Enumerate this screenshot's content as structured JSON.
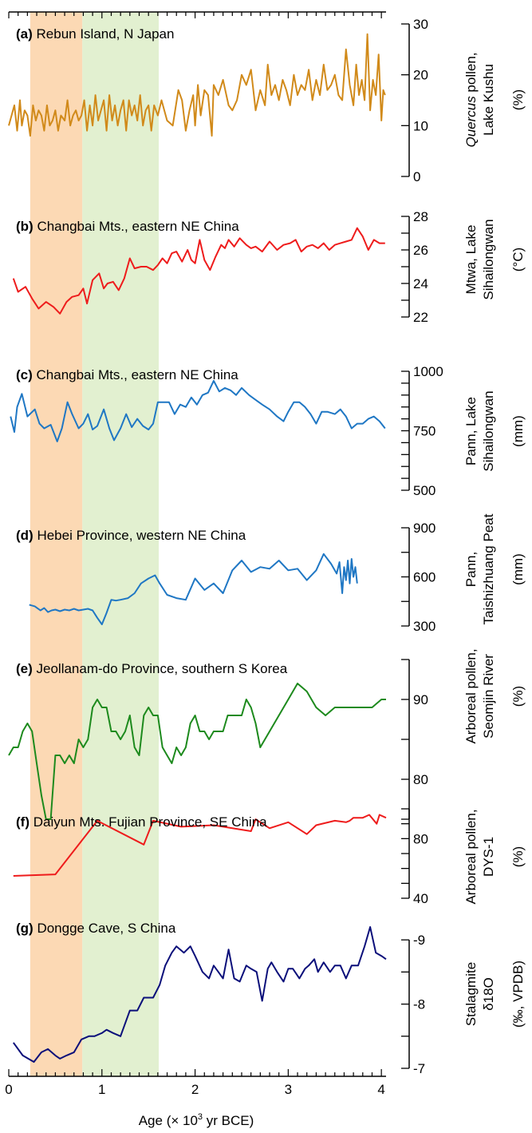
{
  "colors": {
    "band_orange": "#fcd9b4",
    "band_green": "#e2f0d0",
    "axis": "#000000"
  },
  "bottom_axis": {
    "label_prefix": "Age (× 10",
    "label_sup": "3",
    "label_suffix": " yr BCE)",
    "ticks": [
      "0",
      "1",
      "2",
      "3",
      "4"
    ],
    "xlim": [
      0,
      4.05
    ]
  },
  "bands": [
    {
      "x0": 0.23,
      "x1": 0.79,
      "color": "#fcd9b4"
    },
    {
      "x0": 0.79,
      "x1": 1.61,
      "color": "#e2f0d0"
    }
  ],
  "chart_data": [
    {
      "type": "line",
      "panel_letter": "(a)",
      "site": " Rebun Island, N Japan",
      "ylabel_line1_prefix": "",
      "ylabel_line1_italic": "Quercus",
      "ylabel_line1_suffix": " pollen,",
      "ylabel_line2": "Lake Kushu",
      "unit": "(%)",
      "color": "#d18a1a",
      "ylim": [
        0,
        30
      ],
      "y_ticks": [
        0,
        10,
        20,
        30
      ],
      "y_tick_labels": [
        "0",
        "10",
        "20",
        "30"
      ],
      "x": [
        0.0,
        0.03,
        0.06,
        0.09,
        0.12,
        0.14,
        0.17,
        0.2,
        0.23,
        0.26,
        0.29,
        0.32,
        0.35,
        0.38,
        0.41,
        0.44,
        0.47,
        0.5,
        0.53,
        0.56,
        0.6,
        0.63,
        0.66,
        0.69,
        0.72,
        0.75,
        0.78,
        0.81,
        0.84,
        0.87,
        0.9,
        0.93,
        0.96,
        0.99,
        1.02,
        1.05,
        1.08,
        1.11,
        1.14,
        1.17,
        1.2,
        1.23,
        1.26,
        1.29,
        1.32,
        1.35,
        1.38,
        1.41,
        1.44,
        1.47,
        1.5,
        1.53,
        1.56,
        1.6,
        1.64,
        1.7,
        1.76,
        1.82,
        1.86,
        1.9,
        1.94,
        1.98,
        2.0,
        2.03,
        2.06,
        2.1,
        2.14,
        2.18,
        2.2,
        2.25,
        2.3,
        2.36,
        2.4,
        2.45,
        2.5,
        2.55,
        2.6,
        2.65,
        2.7,
        2.75,
        2.78,
        2.82,
        2.86,
        2.9,
        2.94,
        2.98,
        3.02,
        3.06,
        3.1,
        3.14,
        3.18,
        3.22,
        3.26,
        3.3,
        3.34,
        3.38,
        3.42,
        3.46,
        3.5,
        3.54,
        3.58,
        3.62,
        3.66,
        3.7,
        3.73,
        3.76,
        3.79,
        3.82,
        3.85,
        3.88,
        3.91,
        3.94,
        3.97,
        4.0,
        4.02,
        4.04
      ],
      "y": [
        10,
        12,
        14,
        9,
        15,
        10,
        13,
        12,
        8,
        14,
        11,
        13,
        12,
        9,
        14,
        10,
        11,
        13,
        9,
        12,
        11,
        15,
        10,
        12,
        13,
        11,
        12,
        15,
        9,
        14,
        10,
        16,
        11,
        13,
        15,
        9,
        16,
        11,
        14,
        10,
        13,
        15,
        9,
        15,
        12,
        14,
        11,
        16,
        10,
        13,
        14,
        9,
        14,
        12,
        15,
        11,
        10,
        17,
        15,
        9,
        13,
        16,
        10,
        18,
        12,
        17,
        16,
        8,
        18,
        16,
        19,
        14,
        13,
        15,
        20,
        18,
        21,
        13,
        17,
        14,
        22,
        16,
        18,
        15,
        19,
        17,
        14,
        20,
        16,
        18,
        17,
        21,
        15,
        19,
        16,
        22,
        17,
        18,
        20,
        16,
        15,
        25,
        18,
        14,
        22,
        16,
        19,
        15,
        28,
        13,
        19,
        16,
        24,
        11,
        17,
        16
      ]
    },
    {
      "type": "line",
      "panel_letter": "(b)",
      "site": " Changbai Mts., eastern NE China",
      "ylabel_line1_prefix": "Mtwa, Lake",
      "ylabel_line1_italic": "",
      "ylabel_line1_suffix": "",
      "ylabel_line2": "Sihailongwan",
      "unit": "(°C)",
      "color": "#ee1c1c",
      "ylim": [
        22,
        28
      ],
      "y_ticks": [
        22,
        23,
        24,
        25,
        26,
        27,
        28
      ],
      "y_tick_labels": [
        "22",
        "",
        "24",
        "",
        "26",
        "",
        "28"
      ],
      "x": [
        0.05,
        0.1,
        0.18,
        0.25,
        0.32,
        0.4,
        0.48,
        0.55,
        0.62,
        0.68,
        0.75,
        0.8,
        0.84,
        0.9,
        0.97,
        1.02,
        1.06,
        1.12,
        1.18,
        1.24,
        1.3,
        1.35,
        1.42,
        1.48,
        1.55,
        1.6,
        1.65,
        1.7,
        1.75,
        1.8,
        1.86,
        1.92,
        1.96,
        2.0,
        2.05,
        2.1,
        2.16,
        2.22,
        2.28,
        2.32,
        2.36,
        2.42,
        2.48,
        2.55,
        2.6,
        2.65,
        2.72,
        2.8,
        2.88,
        2.95,
        3.02,
        3.08,
        3.14,
        3.2,
        3.26,
        3.32,
        3.38,
        3.44,
        3.5,
        3.56,
        3.62,
        3.68,
        3.74,
        3.8,
        3.86,
        3.92,
        3.98,
        4.04
      ],
      "y": [
        24.3,
        23.5,
        23.8,
        23.1,
        22.5,
        22.9,
        22.6,
        22.2,
        22.9,
        23.2,
        23.3,
        23.7,
        22.8,
        24.2,
        24.6,
        23.7,
        24.0,
        24.1,
        23.6,
        24.3,
        25.5,
        24.9,
        25.0,
        25.0,
        24.8,
        25.1,
        25.5,
        25.2,
        25.8,
        25.9,
        25.3,
        26.0,
        25.4,
        25.2,
        26.6,
        25.4,
        24.8,
        25.6,
        26.3,
        26.1,
        26.6,
        26.2,
        26.7,
        26.3,
        26.1,
        26.2,
        25.9,
        26.5,
        26.0,
        26.3,
        26.4,
        26.6,
        25.9,
        26.2,
        26.3,
        26.1,
        26.4,
        26.0,
        26.3,
        26.4,
        26.5,
        26.6,
        27.3,
        26.8,
        26.0,
        26.6,
        26.4,
        26.4
      ]
    },
    {
      "type": "line",
      "panel_letter": "(c)",
      "site": " Changbai Mts., eastern NE China",
      "ylabel_line1_prefix": "Pann, Lake",
      "ylabel_line1_italic": "",
      "ylabel_line1_suffix": "",
      "ylabel_line2": "Sihailongwan",
      "unit": "(mm)",
      "color": "#1f77c4",
      "ylim": [
        500,
        1000
      ],
      "y_ticks": [
        500,
        550,
        600,
        650,
        700,
        750,
        800,
        850,
        900,
        950,
        1000
      ],
      "y_tick_labels": [
        "500",
        "",
        "",
        "",
        "",
        "750",
        "",
        "",
        "",
        "",
        "1000"
      ],
      "x": [
        0.02,
        0.06,
        0.09,
        0.14,
        0.2,
        0.28,
        0.33,
        0.38,
        0.45,
        0.52,
        0.57,
        0.63,
        0.68,
        0.75,
        0.8,
        0.85,
        0.9,
        0.95,
        1.02,
        1.08,
        1.13,
        1.2,
        1.26,
        1.32,
        1.38,
        1.44,
        1.5,
        1.55,
        1.6,
        1.66,
        1.72,
        1.78,
        1.84,
        1.9,
        1.96,
        2.02,
        2.08,
        2.14,
        2.2,
        2.26,
        2.32,
        2.38,
        2.44,
        2.5,
        2.58,
        2.65,
        2.72,
        2.8,
        2.88,
        2.95,
        3.0,
        3.06,
        3.12,
        3.18,
        3.24,
        3.3,
        3.36,
        3.42,
        3.5,
        3.56,
        3.62,
        3.68,
        3.74,
        3.8,
        3.86,
        3.92,
        3.98,
        4.04
      ],
      "y": [
        810,
        745,
        850,
        905,
        810,
        840,
        780,
        760,
        775,
        705,
        760,
        870,
        820,
        760,
        780,
        820,
        755,
        770,
        840,
        760,
        710,
        760,
        820,
        765,
        800,
        770,
        755,
        780,
        870,
        870,
        870,
        820,
        860,
        850,
        890,
        860,
        900,
        910,
        960,
        915,
        930,
        920,
        900,
        930,
        900,
        880,
        860,
        840,
        810,
        790,
        830,
        870,
        870,
        850,
        820,
        780,
        830,
        830,
        820,
        840,
        810,
        760,
        780,
        780,
        800,
        810,
        790,
        760
      ]
    },
    {
      "type": "line",
      "panel_letter": "(d)",
      "site": " Hebei Province, western NE China",
      "ylabel_line1_prefix": "Pann,",
      "ylabel_line1_italic": "",
      "ylabel_line1_suffix": "",
      "ylabel_line2": "Taishizhuang Peat",
      "unit": "(mm)",
      "color": "#1f77c4",
      "ylim": [
        300,
        900
      ],
      "y_ticks": [
        300,
        450,
        600,
        750,
        900
      ],
      "y_tick_labels": [
        "300",
        "",
        "600",
        "",
        "900"
      ],
      "x": [
        0.22,
        0.28,
        0.34,
        0.38,
        0.42,
        0.46,
        0.5,
        0.55,
        0.6,
        0.65,
        0.7,
        0.75,
        0.8,
        0.85,
        0.9,
        0.95,
        1.0,
        1.05,
        1.1,
        1.15,
        1.2,
        1.28,
        1.35,
        1.42,
        1.5,
        1.57,
        1.62,
        1.7,
        1.8,
        1.9,
        2.0,
        2.1,
        2.2,
        2.3,
        2.4,
        2.5,
        2.6,
        2.7,
        2.8,
        2.9,
        3.0,
        3.1,
        3.2,
        3.3,
        3.38,
        3.46,
        3.52,
        3.55,
        3.58,
        3.6,
        3.62,
        3.64,
        3.66,
        3.68,
        3.7,
        3.72,
        3.74
      ],
      "y": [
        430,
        420,
        395,
        410,
        385,
        395,
        400,
        390,
        400,
        395,
        405,
        395,
        400,
        405,
        395,
        350,
        310,
        380,
        460,
        455,
        460,
        470,
        500,
        560,
        590,
        610,
        560,
        490,
        470,
        460,
        590,
        520,
        560,
        500,
        640,
        700,
        630,
        660,
        650,
        700,
        640,
        650,
        580,
        640,
        740,
        680,
        620,
        690,
        500,
        660,
        580,
        700,
        560,
        710,
        600,
        660,
        560
      ]
    },
    {
      "type": "line",
      "panel_letter": "(e)",
      "site": " Jeollanam-do Province, southern S Korea",
      "ylabel_line1_prefix": "Arboreal pollen,",
      "ylabel_line1_italic": "",
      "ylabel_line1_suffix": "",
      "ylabel_line2": "Seomjin River",
      "unit": "(%)",
      "color": "#1d8a1d",
      "ylim": [
        75,
        95
      ],
      "y_ticks": [
        75,
        80,
        85,
        90,
        95
      ],
      "y_tick_labels": [
        "",
        "80",
        "",
        "90",
        ""
      ],
      "x": [
        0.0,
        0.05,
        0.1,
        0.15,
        0.2,
        0.25,
        0.3,
        0.35,
        0.4,
        0.45,
        0.5,
        0.55,
        0.6,
        0.65,
        0.7,
        0.75,
        0.8,
        0.85,
        0.9,
        0.95,
        1.0,
        1.05,
        1.1,
        1.15,
        1.2,
        1.25,
        1.3,
        1.35,
        1.4,
        1.45,
        1.5,
        1.55,
        1.6,
        1.65,
        1.7,
        1.75,
        1.8,
        1.85,
        1.9,
        1.95,
        2.0,
        2.05,
        2.1,
        2.15,
        2.2,
        2.25,
        2.3,
        2.35,
        2.4,
        2.45,
        2.5,
        2.55,
        2.6,
        2.65,
        2.7,
        2.8,
        2.9,
        3.0,
        3.1,
        3.2,
        3.3,
        3.4,
        3.5,
        3.6,
        3.7,
        3.8,
        3.9,
        4.0,
        4.05
      ],
      "y": [
        83,
        84,
        84,
        86,
        87,
        86,
        82,
        78,
        75,
        75,
        83,
        83,
        82,
        83,
        82,
        85,
        84,
        85,
        89,
        90,
        89,
        89,
        86,
        86,
        85,
        86,
        88,
        84,
        83,
        88,
        89,
        88,
        88,
        84,
        83,
        82,
        84,
        83,
        84,
        87,
        88,
        86,
        86,
        85,
        86,
        86,
        86,
        88,
        88,
        88,
        88,
        90,
        89,
        87,
        84,
        86,
        88,
        90,
        92,
        91,
        89,
        88,
        89,
        89,
        89,
        89,
        89,
        90,
        90
      ]
    },
    {
      "type": "line",
      "panel_letter": "(f)",
      "site": " Daiyun Mts. Fujian Province, SE China",
      "ylabel_line1_prefix": "Arboreal pollen,",
      "ylabel_line1_italic": "",
      "ylabel_line1_suffix": "",
      "ylabel_line2": "DYS-1",
      "unit": "(%)",
      "color": "#ee1c1c",
      "ylim": [
        40,
        100
      ],
      "y_ticks": [
        40,
        50,
        60,
        70,
        80,
        90,
        100
      ],
      "y_tick_labels": [
        "40",
        "",
        "",
        "",
        "80",
        "",
        ""
      ],
      "x": [
        0.05,
        0.5,
        0.95,
        1.45,
        1.55,
        1.85,
        2.2,
        2.6,
        2.65,
        2.8,
        3.0,
        3.2,
        3.3,
        3.5,
        3.62,
        3.66,
        3.7,
        3.8,
        3.87,
        3.95,
        3.98,
        4.05
      ],
      "y": [
        55,
        56,
        92,
        76,
        92,
        88,
        89,
        85,
        93,
        87,
        91,
        83,
        89,
        92,
        91,
        92,
        94,
        94,
        96,
        90,
        96,
        94
      ]
    },
    {
      "type": "line",
      "panel_letter": "(g)",
      "site": " Dongge Cave, S China",
      "ylabel_line1_prefix": "Stalagmite",
      "ylabel_line1_italic": "",
      "ylabel_line1_suffix": "",
      "ylabel_line2": "δ18O",
      "unit": "(‰, VPDB)",
      "color": "#0b0f7a",
      "ylim": [
        -7.0,
        -9.3
      ],
      "y_ticks": [
        -7.0,
        -7.5,
        -8.0,
        -8.5,
        -9.0
      ],
      "y_tick_labels": [
        "-7",
        "",
        "-8",
        "",
        "-9"
      ],
      "x": [
        0.05,
        0.15,
        0.27,
        0.35,
        0.42,
        0.5,
        0.55,
        0.62,
        0.7,
        0.78,
        0.86,
        0.92,
        1.0,
        1.05,
        1.12,
        1.2,
        1.3,
        1.38,
        1.45,
        1.55,
        1.62,
        1.68,
        1.75,
        1.8,
        1.88,
        1.95,
        2.0,
        2.08,
        2.15,
        2.2,
        2.25,
        2.3,
        2.36,
        2.42,
        2.48,
        2.55,
        2.6,
        2.66,
        2.72,
        2.78,
        2.82,
        2.88,
        2.95,
        3.0,
        3.05,
        3.12,
        3.18,
        3.22,
        3.28,
        3.32,
        3.38,
        3.45,
        3.5,
        3.56,
        3.62,
        3.68,
        3.75,
        3.82,
        3.88,
        3.94,
        4.0,
        4.05
      ],
      "y": [
        -7.4,
        -7.2,
        -7.1,
        -7.25,
        -7.3,
        -7.2,
        -7.15,
        -7.2,
        -7.25,
        -7.45,
        -7.5,
        -7.5,
        -7.55,
        -7.6,
        -7.55,
        -7.5,
        -7.9,
        -7.9,
        -8.1,
        -8.1,
        -8.3,
        -8.6,
        -8.8,
        -8.9,
        -8.8,
        -8.9,
        -8.75,
        -8.5,
        -8.4,
        -8.6,
        -8.5,
        -8.4,
        -8.85,
        -8.4,
        -8.35,
        -8.6,
        -8.55,
        -8.5,
        -8.05,
        -8.55,
        -8.65,
        -8.5,
        -8.35,
        -8.55,
        -8.55,
        -8.4,
        -8.55,
        -8.6,
        -8.7,
        -8.5,
        -8.65,
        -8.5,
        -8.6,
        -8.6,
        -8.4,
        -8.6,
        -8.6,
        -8.9,
        -9.2,
        -8.8,
        -8.75,
        -8.7
      ]
    }
  ]
}
